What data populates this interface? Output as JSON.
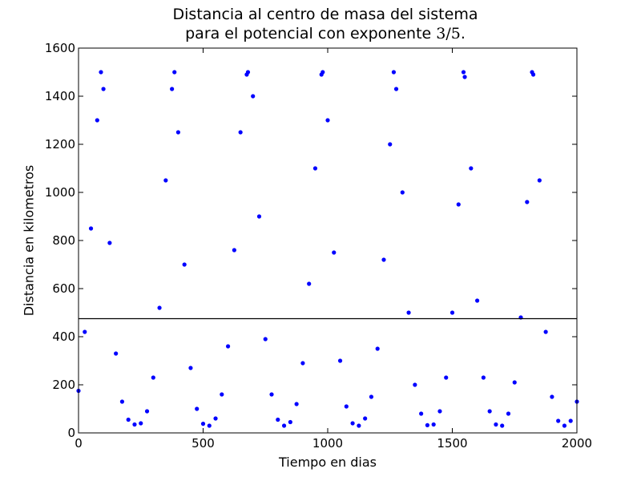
{
  "chart_data": {
    "type": "scatter",
    "title_line1": "Distancia al centro de masa del sistema",
    "title_line2_prefix": "para el potencial con exponente ",
    "title_line2_math": "3/5",
    "title_line2_suffix": ".",
    "xlabel": "Tiempo en dias",
    "ylabel": "Distancia en kilometros",
    "xlim": [
      0,
      2000
    ],
    "ylim": [
      0,
      1600
    ],
    "x_ticks": [
      0,
      500,
      1000,
      1500,
      2000
    ],
    "y_ticks": [
      0,
      200,
      400,
      600,
      800,
      1000,
      1200,
      1400,
      1600
    ],
    "grid": false,
    "marker_color": "#0000ff",
    "reference_line": {
      "y": 475,
      "color": "#000000"
    },
    "series": [
      {
        "x": [
          0,
          25,
          50,
          75,
          90,
          100,
          125,
          150,
          175,
          200,
          225,
          250,
          275,
          300,
          325,
          350,
          375,
          385,
          400,
          425,
          450,
          475,
          500,
          525,
          550,
          575,
          600,
          625,
          650,
          675,
          680,
          700,
          725,
          750,
          775,
          800,
          825,
          850,
          875,
          900,
          925,
          950,
          975,
          980,
          1000,
          1025,
          1050,
          1075,
          1100,
          1125,
          1150,
          1175,
          1200,
          1225,
          1250,
          1265,
          1275,
          1300,
          1325,
          1350,
          1375,
          1400,
          1425,
          1450,
          1475,
          1500,
          1525,
          1545,
          1550,
          1575,
          1600,
          1625,
          1650,
          1675,
          1700,
          1725,
          1750,
          1775,
          1800,
          1820,
          1825,
          1850,
          1875,
          1900,
          1925,
          1950,
          1975,
          2000
        ],
        "y": [
          175,
          420,
          850,
          1300,
          1500,
          1430,
          790,
          330,
          130,
          55,
          35,
          40,
          90,
          230,
          520,
          1050,
          1430,
          1500,
          1250,
          700,
          270,
          100,
          38,
          30,
          60,
          160,
          360,
          760,
          1250,
          1490,
          1500,
          1400,
          900,
          390,
          160,
          55,
          30,
          45,
          120,
          290,
          620,
          1100,
          1490,
          1500,
          1300,
          750,
          300,
          110,
          40,
          30,
          60,
          150,
          350,
          720,
          1200,
          1500,
          1430,
          1000,
          500,
          200,
          80,
          32,
          35,
          90,
          230,
          500,
          950,
          1500,
          1480,
          1100,
          550,
          230,
          90,
          35,
          30,
          80,
          210,
          480,
          960,
          1500,
          1490,
          1050,
          420,
          150,
          50,
          30,
          50,
          130
        ]
      }
    ]
  }
}
